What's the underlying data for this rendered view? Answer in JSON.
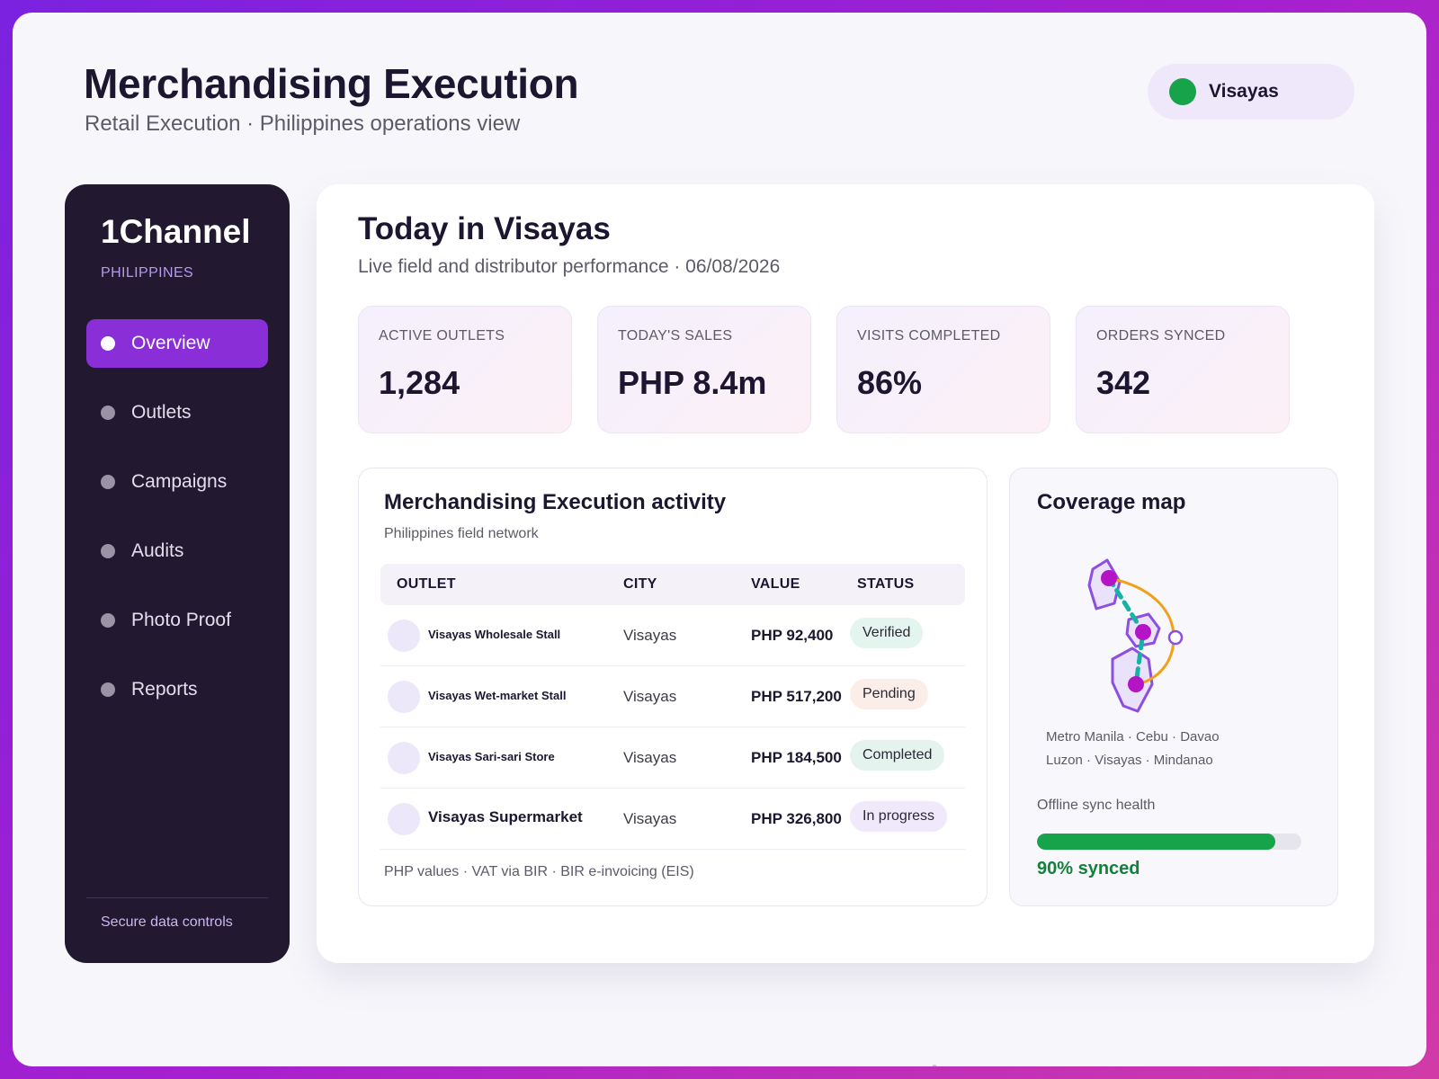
{
  "header": {
    "title": "Merchandising Execution",
    "subtitle": "Retail Execution · Philippines operations view",
    "region": "Visayas"
  },
  "sidebar": {
    "brand": "1Channel",
    "country": "PHILIPPINES",
    "items": [
      {
        "label": "Overview",
        "active": true
      },
      {
        "label": "Outlets"
      },
      {
        "label": "Campaigns"
      },
      {
        "label": "Audits"
      },
      {
        "label": "Photo Proof"
      },
      {
        "label": "Reports"
      }
    ],
    "footer": "Secure data controls"
  },
  "main": {
    "title": "Today in Visayas",
    "subtitle": "Live field and distributor performance · 06/08/2026",
    "kpis": [
      {
        "label": "ACTIVE OUTLETS",
        "value": "1,284"
      },
      {
        "label": "TODAY'S SALES",
        "value": "PHP 8.4m"
      },
      {
        "label": "VISITS COMPLETED",
        "value": "86%"
      },
      {
        "label": "ORDERS SYNCED",
        "value": "342"
      }
    ]
  },
  "activity": {
    "title": "Merchandising Execution activity",
    "subtitle": "Philippines field network",
    "columns": [
      "OUTLET",
      "CITY",
      "VALUE",
      "STATUS"
    ],
    "rows": [
      {
        "outlet": "Visayas Wholesale Stall",
        "city": "Visayas",
        "value": "PHP 92,400",
        "status": "Verified"
      },
      {
        "outlet": "Visayas Wet-market Stall",
        "city": "Visayas",
        "value": "PHP 517,200",
        "status": "Pending"
      },
      {
        "outlet": "Visayas Sari-sari Store",
        "city": "Visayas",
        "value": "PHP 184,500",
        "status": "Completed"
      },
      {
        "outlet": "Visayas Supermarket",
        "city": "Visayas",
        "value": "PHP 326,800",
        "status": "In progress"
      }
    ],
    "footer": "PHP values · VAT via BIR · BIR e-invoicing (EIS)"
  },
  "coverage": {
    "title": "Coverage map",
    "cities": "Metro Manila · Cebu · Davao",
    "regions": "Luzon · Visayas · Mindanao",
    "sync_label": "Offline sync health",
    "sync_fraction": 0.9,
    "sync_value": "90% synced"
  },
  "colors": {
    "accent": "#8a2ed8",
    "status_dot": "#16a34a",
    "sidebar_bg": "#221830"
  },
  "icons": {
    "region": "status-dot-icon",
    "nav": "bullet-icon",
    "map": "philippines-map-icon"
  }
}
